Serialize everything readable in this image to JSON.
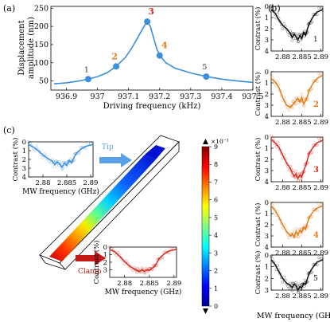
{
  "panels": {
    "a": "(a)",
    "b": "(b)",
    "c": "(c)"
  },
  "chart_data": [
    {
      "id": "a",
      "type": "line",
      "xlabel": "Driving frequency (kHz)",
      "ylabel_line1": "Displacement",
      "ylabel_line2": "amplitude (nm)",
      "xlim": [
        936.85,
        937.5
      ],
      "ylim": [
        25,
        255
      ],
      "xticks": [
        936.9,
        937.0,
        937.1,
        937.2,
        937.3,
        937.4,
        937.5
      ],
      "xtick_labels": [
        "936.9",
        "937",
        "937.1",
        "937.2",
        "937.3",
        "937.4",
        "937.5"
      ],
      "yticks": [
        50,
        100,
        150,
        200,
        250
      ],
      "ytick_labels": [
        "50",
        "100",
        "150",
        "200",
        "250"
      ],
      "series": [
        {
          "x": [
            936.86,
            936.9,
            936.94,
            936.97,
            937.0,
            937.03,
            937.06,
            937.09,
            937.11,
            937.13,
            937.15,
            937.16,
            937.17,
            937.18,
            937.19,
            937.2,
            937.22,
            937.25,
            937.3,
            937.35,
            937.4,
            937.45,
            937.5
          ],
          "y": [
            42,
            45,
            50,
            55,
            62,
            72,
            90,
            115,
            140,
            170,
            200,
            213,
            200,
            170,
            140,
            120,
            100,
            85,
            72,
            62,
            55,
            50,
            46
          ]
        }
      ],
      "markers": [
        {
          "label": "1",
          "x": 936.97,
          "y": 55,
          "color": "#3c8ede"
        },
        {
          "label": "2",
          "x": 937.06,
          "y": 90,
          "color": "#3c8ede"
        },
        {
          "label": "3",
          "x": 937.16,
          "y": 213,
          "color": "#3c8ede"
        },
        {
          "label": "4",
          "x": 937.2,
          "y": 120,
          "color": "#3c8ede"
        },
        {
          "label": "5",
          "x": 937.35,
          "y": 62,
          "color": "#3c8ede"
        }
      ],
      "marker_label_colors": [
        "#333333",
        "#e07b1a",
        "#d62a1e",
        "#e07b1a",
        "#333333"
      ]
    },
    {
      "id": "b",
      "type": "line",
      "xlabel": "MW frequency (GHz)",
      "ylabel": "Contrast (%)",
      "xlim": [
        2.877,
        2.8905
      ],
      "ylim": [
        0,
        4
      ],
      "xticks": [
        2.88,
        2.885,
        2.89
      ],
      "xtick_labels": [
        "2.88",
        "2.885",
        "2.89"
      ],
      "yticks": [
        0,
        1,
        2,
        3,
        4
      ],
      "ytick_labels": [
        "0",
        "1",
        "2",
        "3",
        "4"
      ],
      "x": [
        2.877,
        2.878,
        2.879,
        2.88,
        2.881,
        2.882,
        2.8825,
        2.883,
        2.8835,
        2.884,
        2.8845,
        2.885,
        2.8855,
        2.886,
        2.8865,
        2.887,
        2.888,
        2.889,
        2.8905
      ],
      "series": [
        {
          "label": "1",
          "color": "#111111",
          "label_color": "#111111",
          "y": [
            0.3,
            0.6,
            1.2,
            1.7,
            2.0,
            2.4,
            2.8,
            2.5,
            2.7,
            3.0,
            2.6,
            2.9,
            2.3,
            2.6,
            2.0,
            1.5,
            0.9,
            0.5,
            0.3
          ]
        },
        {
          "label": "2",
          "color": "#e07b1a",
          "label_color": "#e07b1a",
          "y": [
            0.6,
            0.9,
            1.4,
            2.3,
            3.0,
            3.2,
            3.0,
            2.8,
            2.6,
            2.4,
            2.7,
            2.3,
            2.9,
            2.6,
            2.2,
            1.6,
            1.0,
            0.6,
            0.3
          ]
        },
        {
          "label": "3",
          "color": "#d62a1e",
          "label_color": "#d62a1e",
          "y": [
            0.2,
            0.5,
            0.9,
            1.6,
            2.3,
            2.8,
            3.2,
            3.5,
            3.3,
            3.7,
            3.4,
            3.6,
            3.0,
            2.6,
            2.0,
            1.4,
            0.9,
            0.5,
            0.3
          ]
        },
        {
          "label": "4",
          "color": "#e07b1a",
          "label_color": "#e07b1a",
          "y": [
            0.3,
            0.7,
            1.3,
            2.0,
            2.6,
            3.0,
            2.8,
            3.1,
            2.6,
            2.9,
            2.5,
            2.7,
            2.2,
            2.4,
            1.8,
            1.3,
            0.8,
            0.5,
            0.3
          ]
        },
        {
          "label": "5",
          "color": "#111111",
          "label_color": "#111111",
          "y": [
            0.4,
            0.8,
            1.4,
            2.0,
            2.4,
            2.6,
            2.8,
            2.5,
            2.6,
            3.0,
            2.7,
            2.8,
            2.4,
            2.5,
            2.0,
            1.5,
            1.0,
            0.6,
            0.4
          ]
        }
      ]
    },
    {
      "id": "c-tip",
      "type": "line",
      "arrow_label": "Tip",
      "arrow_color": "#5aa0e6",
      "xlabel": "MW frequency (GHz)",
      "ylabel": "Contrast (%)",
      "xlim": [
        2.877,
        2.8905
      ],
      "ylim": [
        0,
        4
      ],
      "xticks": [
        2.88,
        2.885,
        2.89
      ],
      "xtick_labels": [
        "2.88",
        "2.885",
        "2.89"
      ],
      "yticks": [
        0,
        1,
        2,
        3,
        4
      ],
      "ytick_labels": [
        "0",
        "1",
        "2",
        "3",
        "4"
      ],
      "color": "#3c8ede",
      "x": [
        2.877,
        2.878,
        2.879,
        2.88,
        2.881,
        2.882,
        2.8825,
        2.883,
        2.8835,
        2.884,
        2.8845,
        2.885,
        2.8855,
        2.886,
        2.8865,
        2.887,
        2.888,
        2.889,
        2.8905
      ],
      "y": [
        0.3,
        0.6,
        1.0,
        1.5,
        1.9,
        2.2,
        2.6,
        2.3,
        2.5,
        2.9,
        2.4,
        2.7,
        2.1,
        2.4,
        1.8,
        1.3,
        0.8,
        0.5,
        0.3
      ]
    },
    {
      "id": "c-clamp",
      "type": "line",
      "arrow_label": "Clamp",
      "arrow_color": "#c41a1a",
      "xlabel": "MW frequency (GHz)",
      "ylabel": "Contrast (%)",
      "xlim": [
        2.877,
        2.8905
      ],
      "ylim": [
        0,
        4
      ],
      "xticks": [
        2.88,
        2.885,
        2.89
      ],
      "xtick_labels": [
        "2.88",
        "2.885",
        "2.89"
      ],
      "yticks": [
        0,
        1,
        2,
        3
      ],
      "ytick_labels": [
        "0",
        "1",
        "2",
        "3"
      ],
      "color": "#d62a1e",
      "x": [
        2.877,
        2.878,
        2.879,
        2.88,
        2.881,
        2.882,
        2.8825,
        2.883,
        2.8835,
        2.884,
        2.8845,
        2.885,
        2.8855,
        2.886,
        2.8865,
        2.887,
        2.888,
        2.889,
        2.8905
      ],
      "y": [
        0.3,
        0.6,
        1.2,
        1.9,
        2.5,
        2.9,
        3.1,
        3.2,
        3.0,
        3.2,
        3.0,
        3.1,
        2.8,
        2.6,
        2.1,
        1.5,
        0.9,
        0.5,
        0.3
      ]
    },
    {
      "id": "colorbar",
      "type": "heatmap",
      "scale_label": "×10⁻¹",
      "min": 0,
      "max": 9,
      "ticks": [
        0,
        1,
        2,
        3,
        4,
        5,
        6,
        7,
        8,
        9
      ],
      "tick_labels": [
        "0",
        "1",
        "2",
        "3",
        "4",
        "5",
        "6",
        "7",
        "8",
        "9"
      ],
      "colors": [
        "#00008f",
        "#0000ff",
        "#0080ff",
        "#00ffff",
        "#80ff80",
        "#ffff00",
        "#ff8000",
        "#ff0000",
        "#800000"
      ]
    }
  ]
}
